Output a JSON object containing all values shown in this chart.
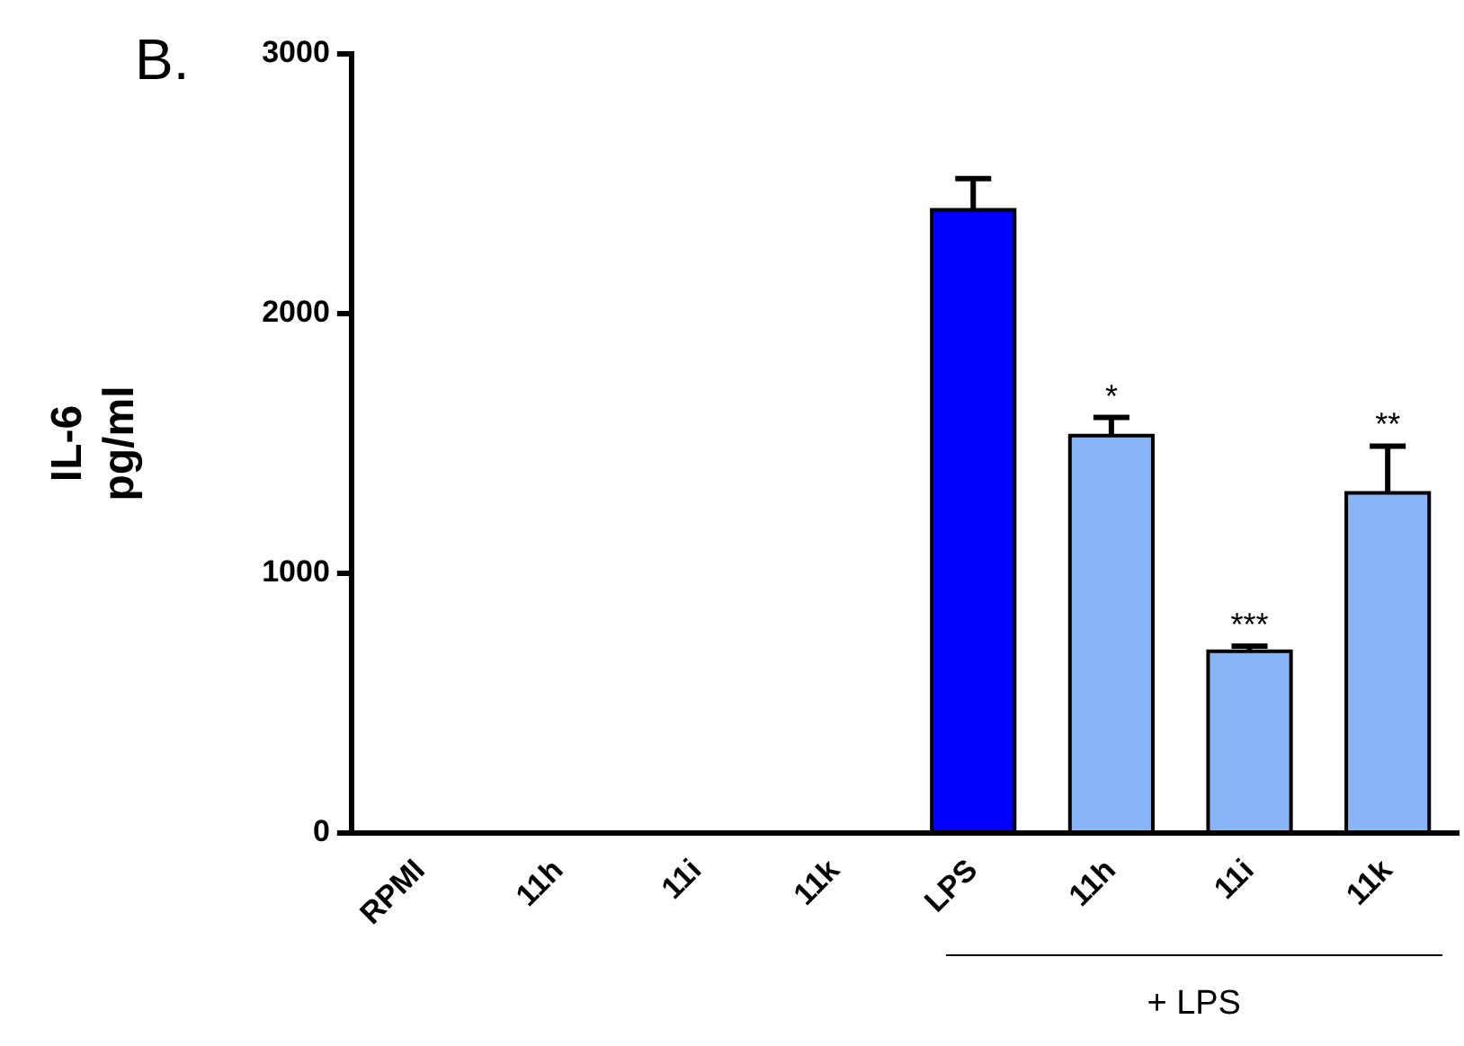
{
  "chart_data": {
    "type": "bar",
    "ylabel": "IL-6\npg/ml",
    "categories": [
      "RPMI",
      "11h",
      "11i",
      "11k",
      "LPS",
      "11h",
      "11i",
      "11k"
    ],
    "values": [
      0,
      0,
      0,
      0,
      2400,
      1530,
      700,
      1310
    ],
    "colors": [
      "#8ab4f8",
      "#8ab4f8",
      "#8ab4f8",
      "#8ab4f8",
      "#0000ff",
      "#8ab4f8",
      "#8ab4f8",
      "#8ab4f8"
    ],
    "errors": [
      null,
      null,
      null,
      null,
      120,
      70,
      20,
      180
    ],
    "value_labels": [
      null,
      null,
      null,
      null,
      null,
      "*",
      "***",
      "**"
    ],
    "ylim": [
      0,
      3000
    ],
    "yticks": [
      0,
      1000,
      2000,
      3000
    ],
    "grid": false,
    "legend": false,
    "annotations": [
      "B.",
      "+ LPS"
    ]
  }
}
